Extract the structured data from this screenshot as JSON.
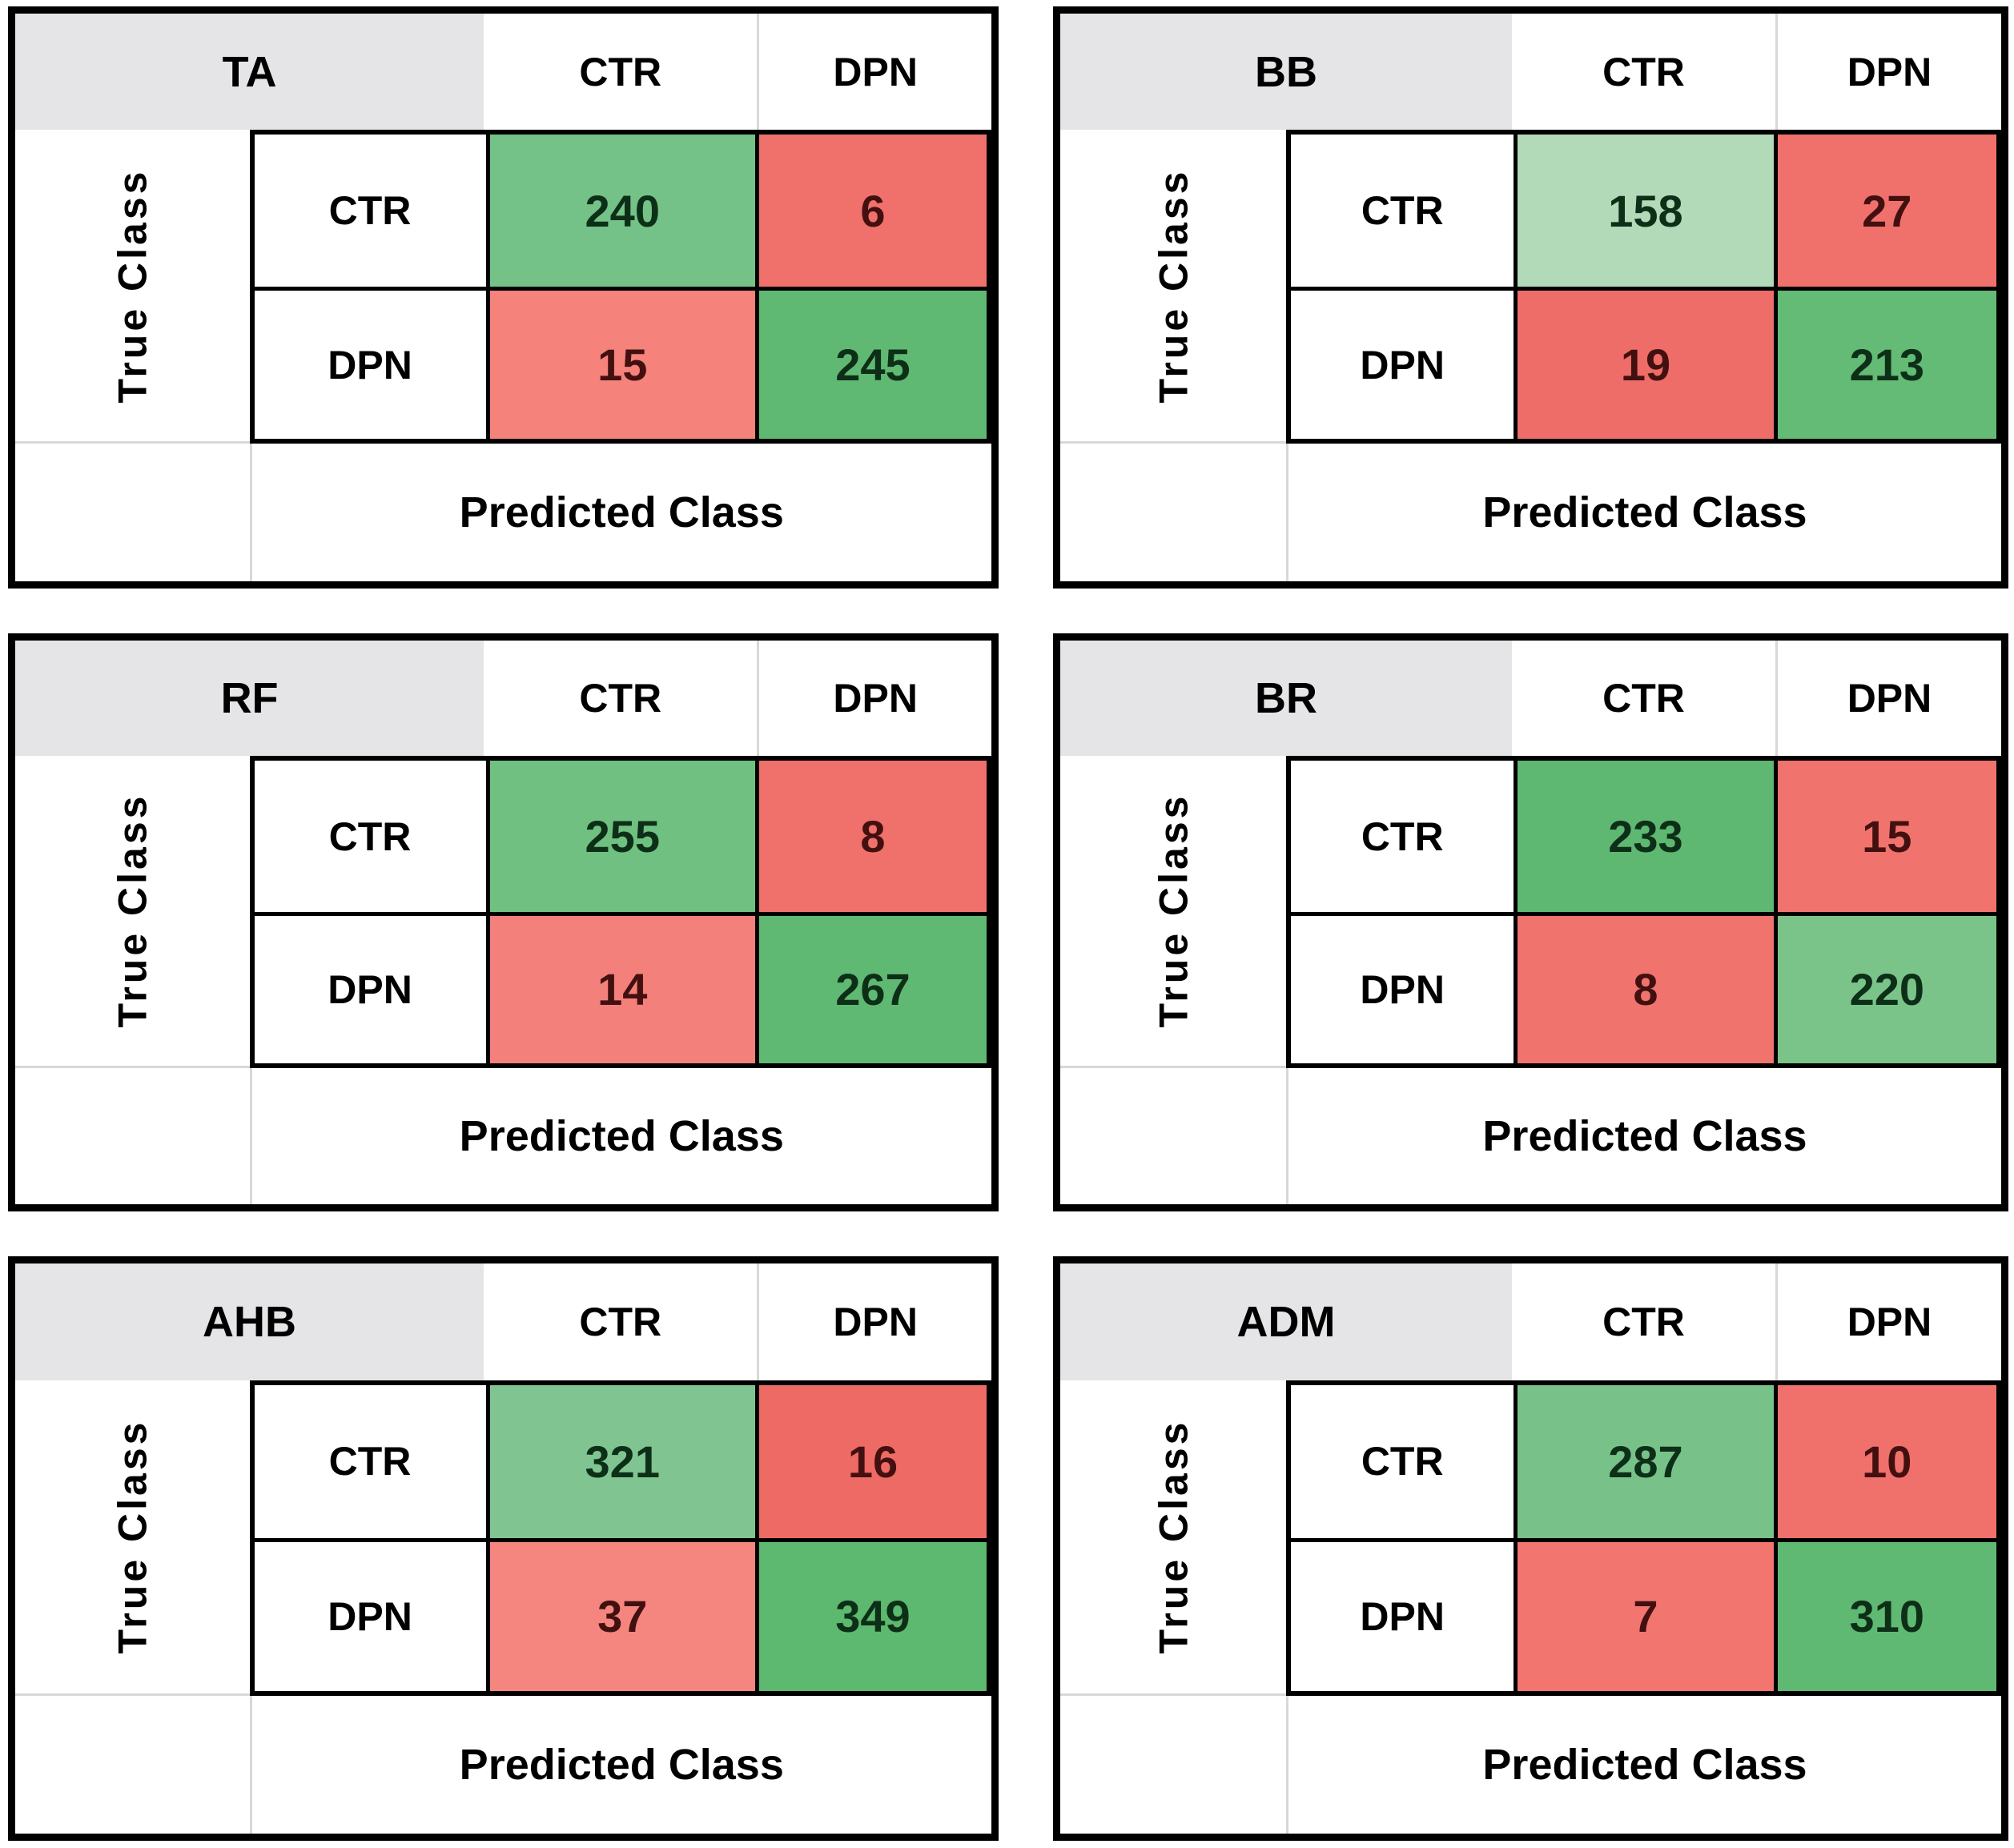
{
  "figure": {
    "description": "Six binary confusion matrices",
    "row_axis_label": "True Class",
    "col_axis_label": "Predicted Class",
    "classes": [
      "CTR",
      "DPN"
    ]
  },
  "palette": {
    "header_bg": "#e5e4e6",
    "border_black": "#000000",
    "thin_gridline": "#d8d8d8",
    "green_strong": "#5eb871",
    "green_medium": "#74c287",
    "green_light": "#b2d9b8",
    "red_strong": "#ee6a65",
    "red_light": "#f4867f",
    "green_text": "#0d2f17",
    "red_text": "#431010"
  },
  "matrices": [
    {
      "id": "ta",
      "title": "TA",
      "cells": [
        {
          "value": "240",
          "bg": "#74c287",
          "fg": "#0d2f17"
        },
        {
          "value": "6",
          "bg": "#f0716c",
          "fg": "#431010"
        },
        {
          "value": "15",
          "bg": "#f5827b",
          "fg": "#431010"
        },
        {
          "value": "245",
          "bg": "#60b973",
          "fg": "#0d2f17"
        }
      ]
    },
    {
      "id": "bb",
      "title": "BB",
      "cells": [
        {
          "value": "158",
          "bg": "#b2d9b8",
          "fg": "#0d2f17"
        },
        {
          "value": "27",
          "bg": "#f0716c",
          "fg": "#431010"
        },
        {
          "value": "19",
          "bg": "#ef6d68",
          "fg": "#431010"
        },
        {
          "value": "213",
          "bg": "#63bb75",
          "fg": "#0d2f17"
        }
      ]
    },
    {
      "id": "rf",
      "title": "RF",
      "cells": [
        {
          "value": "255",
          "bg": "#70c082",
          "fg": "#0d2f17"
        },
        {
          "value": "8",
          "bg": "#f0716c",
          "fg": "#431010"
        },
        {
          "value": "14",
          "bg": "#f3807a",
          "fg": "#431010"
        },
        {
          "value": "267",
          "bg": "#60b973",
          "fg": "#0d2f17"
        }
      ]
    },
    {
      "id": "br",
      "title": "BR",
      "cells": [
        {
          "value": "233",
          "bg": "#5eb871",
          "fg": "#0d2f17"
        },
        {
          "value": "15",
          "bg": "#f0736e",
          "fg": "#431010"
        },
        {
          "value": "8",
          "bg": "#f0736e",
          "fg": "#431010"
        },
        {
          "value": "220",
          "bg": "#7ac48a",
          "fg": "#0d2f17"
        }
      ]
    },
    {
      "id": "ahb",
      "title": "AHB",
      "cells": [
        {
          "value": "321",
          "bg": "#80c591",
          "fg": "#0d2f17"
        },
        {
          "value": "16",
          "bg": "#ee6a65",
          "fg": "#431010"
        },
        {
          "value": "37",
          "bg": "#f4867f",
          "fg": "#431010"
        },
        {
          "value": "349",
          "bg": "#5cb96f",
          "fg": "#0d2f17"
        }
      ]
    },
    {
      "id": "adm",
      "title": "ADM",
      "cells": [
        {
          "value": "287",
          "bg": "#78c289",
          "fg": "#0d2f17"
        },
        {
          "value": "10",
          "bg": "#f0716c",
          "fg": "#431010"
        },
        {
          "value": "7",
          "bg": "#f2756f",
          "fg": "#431010"
        },
        {
          "value": "310",
          "bg": "#60b973",
          "fg": "#0d2f17"
        }
      ]
    }
  ],
  "chart_data": [
    {
      "type": "heatmap",
      "title": "TA",
      "x_categories": [
        "CTR",
        "DPN"
      ],
      "y_categories": [
        "CTR",
        "DPN"
      ],
      "xlabel": "Predicted Class",
      "ylabel": "True Class",
      "values": [
        [
          240,
          6
        ],
        [
          15,
          245
        ]
      ]
    },
    {
      "type": "heatmap",
      "title": "BB",
      "x_categories": [
        "CTR",
        "DPN"
      ],
      "y_categories": [
        "CTR",
        "DPN"
      ],
      "xlabel": "Predicted Class",
      "ylabel": "True Class",
      "values": [
        [
          158,
          27
        ],
        [
          19,
          213
        ]
      ]
    },
    {
      "type": "heatmap",
      "title": "RF",
      "x_categories": [
        "CTR",
        "DPN"
      ],
      "y_categories": [
        "CTR",
        "DPN"
      ],
      "xlabel": "Predicted Class",
      "ylabel": "True Class",
      "values": [
        [
          255,
          8
        ],
        [
          14,
          267
        ]
      ]
    },
    {
      "type": "heatmap",
      "title": "BR",
      "x_categories": [
        "CTR",
        "DPN"
      ],
      "y_categories": [
        "CTR",
        "DPN"
      ],
      "xlabel": "Predicted Class",
      "ylabel": "True Class",
      "values": [
        [
          233,
          15
        ],
        [
          8,
          220
        ]
      ]
    },
    {
      "type": "heatmap",
      "title": "AHB",
      "x_categories": [
        "CTR",
        "DPN"
      ],
      "y_categories": [
        "CTR",
        "DPN"
      ],
      "xlabel": "Predicted Class",
      "ylabel": "True Class",
      "values": [
        [
          321,
          16
        ],
        [
          37,
          349
        ]
      ]
    },
    {
      "type": "heatmap",
      "title": "ADM",
      "x_categories": [
        "CTR",
        "DPN"
      ],
      "y_categories": [
        "CTR",
        "DPN"
      ],
      "xlabel": "Predicted Class",
      "ylabel": "True Class",
      "values": [
        [
          287,
          10
        ],
        [
          7,
          310
        ]
      ]
    }
  ]
}
